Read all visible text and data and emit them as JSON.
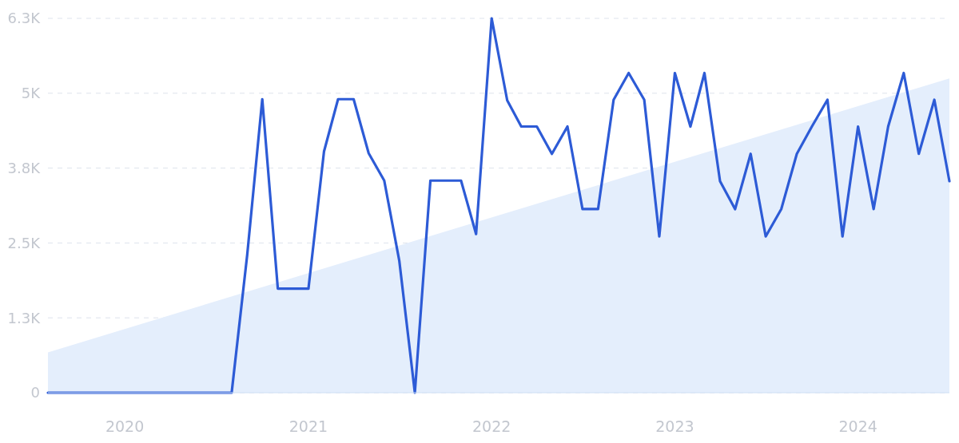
{
  "chart_data": {
    "type": "line",
    "x": [
      "2019-08",
      "2019-09",
      "2019-10",
      "2019-11",
      "2019-12",
      "2020-01",
      "2020-02",
      "2020-03",
      "2020-04",
      "2020-05",
      "2020-06",
      "2020-07",
      "2020-08",
      "2020-09",
      "2020-10",
      "2020-11",
      "2020-12",
      "2021-01",
      "2021-02",
      "2021-03",
      "2021-04",
      "2021-05",
      "2021-06",
      "2021-07",
      "2021-08",
      "2021-09",
      "2021-10",
      "2021-11",
      "2021-12",
      "2022-01",
      "2022-02",
      "2022-03",
      "2022-04",
      "2022-05",
      "2022-06",
      "2022-07",
      "2022-08",
      "2022-09",
      "2022-10",
      "2022-11",
      "2022-12",
      "2023-01",
      "2023-02",
      "2023-03",
      "2023-04",
      "2023-05",
      "2023-06",
      "2023-07",
      "2023-08",
      "2023-09",
      "2023-10",
      "2023-11",
      "2023-12",
      "2024-01",
      "2024-02",
      "2024-03",
      "2024-04",
      "2024-05",
      "2024-06",
      "2024-07"
    ],
    "series": [
      {
        "type": "area",
        "color": "#e4eefc",
        "x": [
          "2019-08",
          "2024-07"
        ],
        "values": [
          680,
          5290
        ]
      },
      {
        "color": "#2d5bd6",
        "values": [
          0,
          0,
          0,
          0,
          0,
          0,
          0,
          0,
          0,
          0,
          0,
          0,
          0,
          2320,
          4940,
          1750,
          1750,
          1750,
          4060,
          4940,
          4940,
          4030,
          3570,
          2220,
          0,
          3570,
          3570,
          3570,
          2670,
          6300,
          4920,
          4480,
          4480,
          4020,
          4480,
          3090,
          3090,
          4930,
          5380,
          4930,
          2630,
          5380,
          4480,
          5380,
          3560,
          3090,
          4020,
          2630,
          3090,
          4020,
          4480,
          4930,
          2630,
          4480,
          3090,
          4480,
          5380,
          4020,
          4930,
          3560
        ]
      }
    ],
    "xlim": [
      "2019-08",
      "2024-07"
    ],
    "xticks": [
      "2020",
      "2021",
      "2022",
      "2023",
      "2024"
    ],
    "ylim": [
      0,
      6300
    ],
    "yticks": [
      {
        "value": 0,
        "label": "0"
      },
      {
        "value": 1260,
        "label": "1.3K"
      },
      {
        "value": 2520,
        "label": "2.5K"
      },
      {
        "value": 3780,
        "label": "3.8K"
      },
      {
        "value": 5040,
        "label": "5K"
      },
      {
        "value": 6300,
        "label": "6.3K"
      }
    ],
    "grid": "y"
  }
}
